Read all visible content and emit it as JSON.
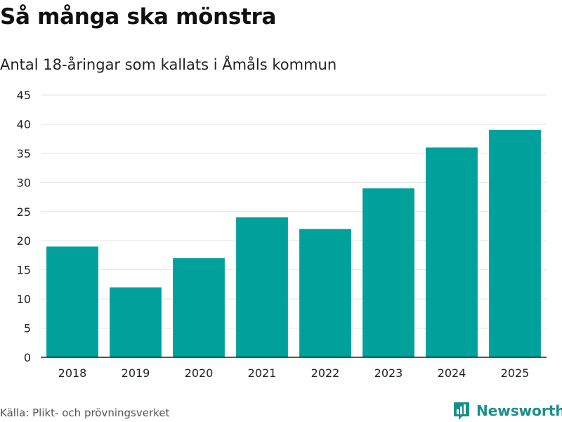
{
  "header": {
    "title": "Så många ska mönstra",
    "subtitle": "Antal 18-åringar som kallats i Åmåls kommun"
  },
  "footer": {
    "source": "Källa: Plikt- och prövningsverket",
    "brand": "Newsworthy",
    "brand_icon": "newsworthy-logo-icon"
  },
  "colors": {
    "bar": "#00a19a",
    "grid": "#e3e3e3",
    "axis": "#222222",
    "brand": "#1a8f89"
  },
  "chart_data": {
    "type": "bar",
    "title": "Så många ska mönstra",
    "subtitle": "Antal 18-åringar som kallats i Åmåls kommun",
    "xlabel": "",
    "ylabel": "",
    "categories": [
      "2018",
      "2019",
      "2020",
      "2021",
      "2022",
      "2023",
      "2024",
      "2025"
    ],
    "values": [
      19,
      12,
      17,
      24,
      22,
      29,
      36,
      39
    ],
    "ylim": [
      0,
      45
    ],
    "yticks": [
      0,
      5,
      10,
      15,
      20,
      25,
      30,
      35,
      40,
      45
    ],
    "grid": true,
    "legend": "none"
  }
}
